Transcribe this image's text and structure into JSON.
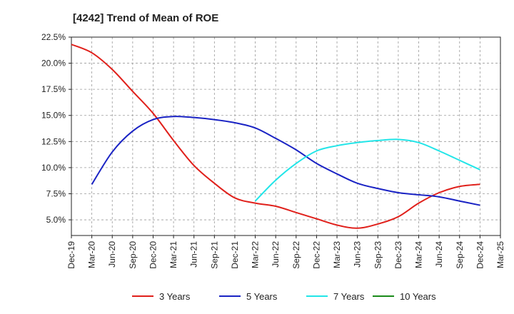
{
  "chart_data": {
    "type": "line",
    "title": "[4242]  Trend of Mean of ROE",
    "xlabel": "",
    "ylabel": "",
    "x_ticks": [
      "Dec-19",
      "Mar-20",
      "Jun-20",
      "Sep-20",
      "Dec-20",
      "Mar-21",
      "Jun-21",
      "Sep-21",
      "Dec-21",
      "Mar-22",
      "Jun-22",
      "Sep-22",
      "Dec-22",
      "Mar-23",
      "Jun-23",
      "Sep-23",
      "Dec-23",
      "Mar-24",
      "Jun-24",
      "Sep-24",
      "Dec-24",
      "Mar-25"
    ],
    "y_ticks": [
      "5.0%",
      "7.5%",
      "10.0%",
      "12.5%",
      "15.0%",
      "17.5%",
      "20.0%",
      "22.5%"
    ],
    "ylim": [
      3.5,
      22.5
    ],
    "grid": "dashed",
    "legend_position": "bottom",
    "series": [
      {
        "name": "3 Years",
        "color": "#e0201b",
        "values": [
          {
            "x": "Dec-19",
            "y": 21.8
          },
          {
            "x": "Mar-20",
            "y": 21.0
          },
          {
            "x": "Jun-20",
            "y": 19.4
          },
          {
            "x": "Sep-20",
            "y": 17.3
          },
          {
            "x": "Dec-20",
            "y": 15.2
          },
          {
            "x": "Mar-21",
            "y": 12.6
          },
          {
            "x": "Jun-21",
            "y": 10.2
          },
          {
            "x": "Sep-21",
            "y": 8.5
          },
          {
            "x": "Dec-21",
            "y": 7.1
          },
          {
            "x": "Mar-22",
            "y": 6.6
          },
          {
            "x": "Jun-22",
            "y": 6.3
          },
          {
            "x": "Sep-22",
            "y": 5.7
          },
          {
            "x": "Dec-22",
            "y": 5.1
          },
          {
            "x": "Mar-23",
            "y": 4.5
          },
          {
            "x": "Jun-23",
            "y": 4.2
          },
          {
            "x": "Sep-23",
            "y": 4.6
          },
          {
            "x": "Dec-23",
            "y": 5.3
          },
          {
            "x": "Mar-24",
            "y": 6.6
          },
          {
            "x": "Jun-24",
            "y": 7.6
          },
          {
            "x": "Sep-24",
            "y": 8.2
          },
          {
            "x": "Dec-24",
            "y": 8.4
          }
        ]
      },
      {
        "name": "5 Years",
        "color": "#1a23c4",
        "values": [
          {
            "x": "Mar-20",
            "y": 8.4
          },
          {
            "x": "Jun-20",
            "y": 11.5
          },
          {
            "x": "Sep-20",
            "y": 13.5
          },
          {
            "x": "Dec-20",
            "y": 14.6
          },
          {
            "x": "Mar-21",
            "y": 14.9
          },
          {
            "x": "Jun-21",
            "y": 14.8
          },
          {
            "x": "Sep-21",
            "y": 14.6
          },
          {
            "x": "Dec-21",
            "y": 14.3
          },
          {
            "x": "Mar-22",
            "y": 13.8
          },
          {
            "x": "Jun-22",
            "y": 12.8
          },
          {
            "x": "Sep-22",
            "y": 11.7
          },
          {
            "x": "Dec-22",
            "y": 10.4
          },
          {
            "x": "Mar-23",
            "y": 9.4
          },
          {
            "x": "Jun-23",
            "y": 8.5
          },
          {
            "x": "Sep-23",
            "y": 8.0
          },
          {
            "x": "Dec-23",
            "y": 7.6
          },
          {
            "x": "Mar-24",
            "y": 7.4
          },
          {
            "x": "Jun-24",
            "y": 7.2
          },
          {
            "x": "Sep-24",
            "y": 6.8
          },
          {
            "x": "Dec-24",
            "y": 6.4
          }
        ]
      },
      {
        "name": "7 Years",
        "color": "#22e5e8",
        "values": [
          {
            "x": "Mar-22",
            "y": 6.8
          },
          {
            "x": "Jun-22",
            "y": 8.8
          },
          {
            "x": "Sep-22",
            "y": 10.4
          },
          {
            "x": "Dec-22",
            "y": 11.6
          },
          {
            "x": "Mar-23",
            "y": 12.1
          },
          {
            "x": "Jun-23",
            "y": 12.4
          },
          {
            "x": "Sep-23",
            "y": 12.6
          },
          {
            "x": "Dec-23",
            "y": 12.7
          },
          {
            "x": "Mar-24",
            "y": 12.4
          },
          {
            "x": "Jun-24",
            "y": 11.6
          },
          {
            "x": "Sep-24",
            "y": 10.7
          },
          {
            "x": "Dec-24",
            "y": 9.8
          }
        ]
      },
      {
        "name": "10 Years",
        "color": "#1a8a1a",
        "values": []
      }
    ]
  }
}
